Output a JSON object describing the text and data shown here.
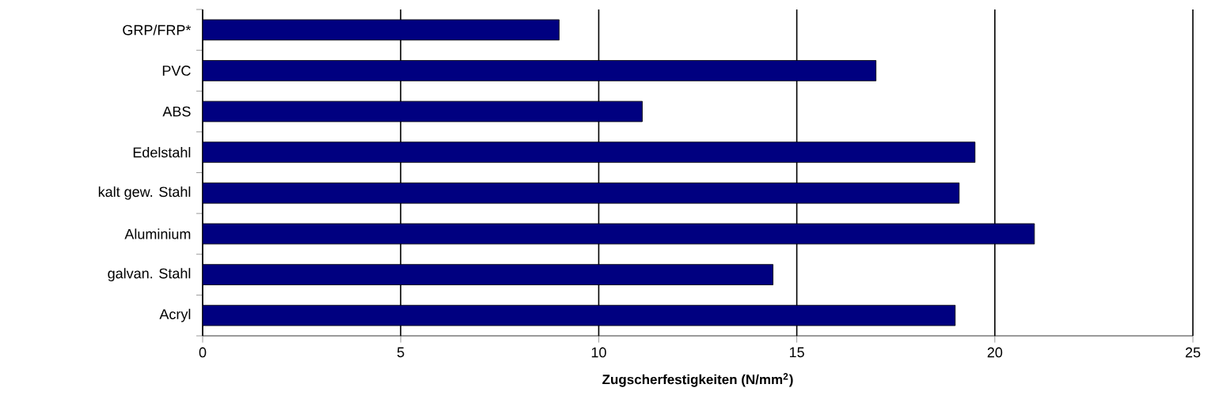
{
  "chart_data": {
    "type": "bar",
    "orientation": "horizontal",
    "categories": [
      "GRP/FRP*",
      "PVC",
      "ABS",
      "Edelstahl",
      "kalt gew. Stahl",
      "Aluminium",
      "galvan. Stahl",
      "Acryl"
    ],
    "values": [
      9,
      17,
      11.1,
      19.5,
      19.1,
      21,
      14.4,
      19
    ],
    "color": "#000080",
    "xlabel": "Zugscherfestigkeiten (N/mm$^{2}$)",
    "xlim": [
      0,
      25
    ],
    "xticks": [
      0,
      5,
      10,
      15,
      20,
      25
    ],
    "grid": "x"
  }
}
